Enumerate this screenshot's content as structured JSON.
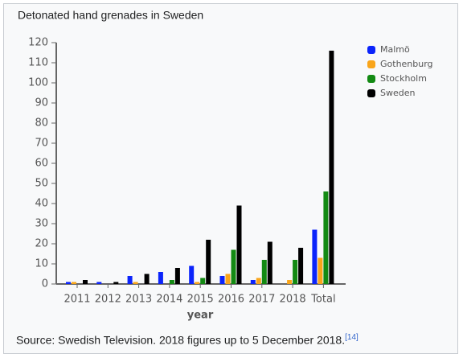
{
  "chart_data": {
    "type": "bar",
    "title": "Detonated hand grenades in Sweden",
    "x_label": "year",
    "categories": [
      "2011",
      "2012",
      "2013",
      "2014",
      "2015",
      "2016",
      "2017",
      "2018",
      "Total"
    ],
    "series": [
      {
        "name": "Malmö",
        "color": "#0b24fb",
        "values": [
          1,
          1,
          4,
          6,
          9,
          4,
          2,
          0,
          27
        ]
      },
      {
        "name": "Gothenburg",
        "color": "#f9a51a",
        "values": [
          1,
          0,
          1,
          0,
          1,
          5,
          3,
          2,
          13
        ]
      },
      {
        "name": "Stockholm",
        "color": "#138a13",
        "values": [
          0,
          0,
          0,
          2,
          3,
          17,
          12,
          12,
          46
        ]
      },
      {
        "name": "Sweden",
        "color": "#000000",
        "values": [
          2,
          1,
          5,
          8,
          22,
          39,
          21,
          18,
          116
        ]
      }
    ],
    "ylim": [
      0,
      120
    ],
    "yticks": [
      0,
      10,
      20,
      30,
      40,
      50,
      60,
      70,
      80,
      90,
      100,
      110,
      120
    ],
    "legend": "right",
    "source": "Source: Swedish Television. 2018 figures up to 5 December 2018.",
    "source_ref": "[14]"
  }
}
